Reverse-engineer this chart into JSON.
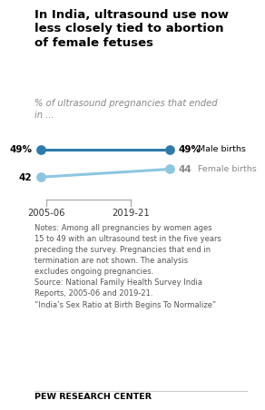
{
  "title": "In India, ultrasound use now\nless closely tied to abortion\nof female fetuses",
  "subtitle": "% of ultrasound pregnancies that ended\nin ...",
  "x_labels": [
    "2005-06",
    "2019-21"
  ],
  "male_values": [
    49,
    49
  ],
  "female_values": [
    42,
    44
  ],
  "male_color": "#2e7bab",
  "female_color": "#8dc6e0",
  "male_label": "Male births",
  "female_label": "Female births",
  "notes_line1": "Notes: Among all pregnancies by women ages",
  "notes_line2": "15 to 49 with an ultrasound test in the five years",
  "notes_line3": "preceding the survey. Pregnancies that end in",
  "notes_line4": "termination are not shown. The analysis",
  "notes_line5": "excludes ongoing pregnancies.",
  "notes_line6": "Source: National Family Health Survey India",
  "notes_line7": "Reports, 2005-06 and 2019-21.",
  "notes_line8": "“India’s Sex Ratio at Birth Begins To Normalize”",
  "footer": "PEW RESEARCH CENTER",
  "background_color": "#ffffff",
  "title_color": "#000000",
  "subtitle_color": "#888888",
  "notes_color": "#555555",
  "footer_color": "#000000",
  "label_color_male": "#000000",
  "label_color_female": "#888888"
}
